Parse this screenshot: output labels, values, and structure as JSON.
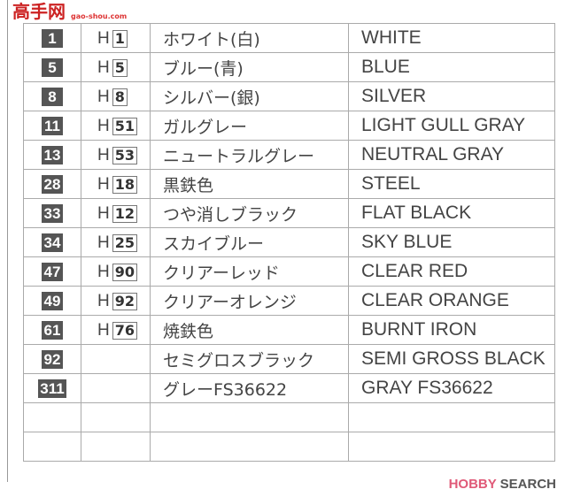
{
  "rows": [
    {
      "num": "1",
      "h": "1",
      "jp": "ホワイト(白)",
      "en": "WHITE"
    },
    {
      "num": "5",
      "h": "5",
      "jp": "ブルー(青)",
      "en": "BLUE"
    },
    {
      "num": "8",
      "h": "8",
      "jp": "シルバー(銀)",
      "en": "SILVER"
    },
    {
      "num": "11",
      "h": "51",
      "jp": "ガルグレー",
      "en": "LIGHT GULL GRAY"
    },
    {
      "num": "13",
      "h": "53",
      "jp": "ニュートラルグレー",
      "en": "NEUTRAL GRAY"
    },
    {
      "num": "28",
      "h": "18",
      "jp": "黒鉄色",
      "en": "STEEL"
    },
    {
      "num": "33",
      "h": "12",
      "jp": "つや消しブラック",
      "en": "FLAT BLACK"
    },
    {
      "num": "34",
      "h": "25",
      "jp": "スカイブルー",
      "en": "SKY BLUE"
    },
    {
      "num": "47",
      "h": "90",
      "jp": "クリアーレッド",
      "en": "CLEAR RED"
    },
    {
      "num": "49",
      "h": "92",
      "jp": "クリアーオレンジ",
      "en": "CLEAR ORANGE"
    },
    {
      "num": "61",
      "h": "76",
      "jp": "焼鉄色",
      "en": "BURNT IRON"
    },
    {
      "num": "92",
      "h": "",
      "jp": "セミグロスブラック",
      "en": "SEMI GROSS BLACK"
    },
    {
      "num": "311",
      "h": "",
      "jp": "グレーFS36622",
      "en": "GRAY FS36622"
    },
    {
      "num": "",
      "h": "",
      "jp": "",
      "en": ""
    },
    {
      "num": "",
      "h": "",
      "jp": "",
      "en": ""
    }
  ],
  "h_prefix": "H",
  "watermark": {
    "title": "高手网",
    "sub": "gao-shou.com"
  },
  "logo": {
    "part1": "HOBBY",
    "part2": "SEARCH"
  }
}
